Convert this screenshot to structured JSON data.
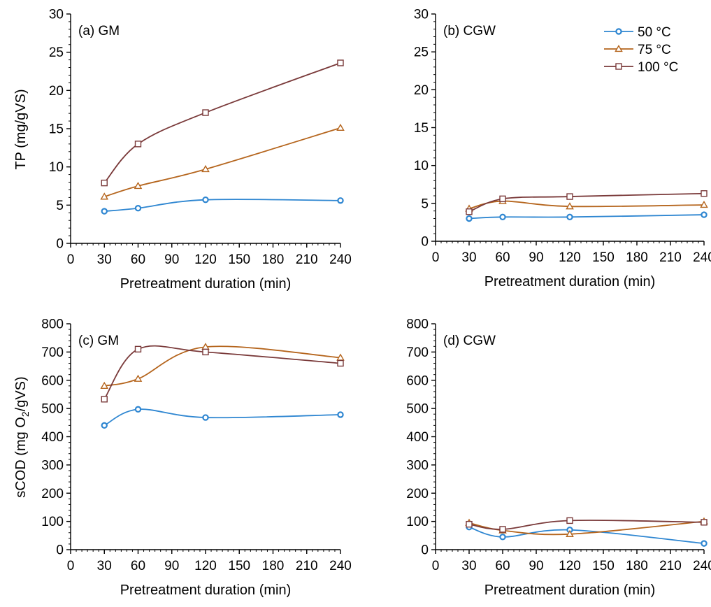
{
  "colors": {
    "50 °C": "#2E86D1",
    "75 °C": "#B5651D",
    "100 °C": "#7A3A3A"
  },
  "ylabel_top": "TP (mg/gVS)",
  "ylabel_bottom_prefix": "sCOD (mg O",
  "ylabel_bottom_sub": "2",
  "ylabel_bottom_suffix": "/gVS)",
  "chart_data": [
    {
      "type": "line",
      "panel_label": "(a) GM",
      "xlabel": "Pretreatment duration (min)",
      "ylabel": "TP (mg/gVS)",
      "xlim": [
        0,
        240
      ],
      "ylim": [
        0,
        30
      ],
      "xticks": [
        0,
        30,
        60,
        90,
        120,
        150,
        180,
        210,
        240
      ],
      "yticks": [
        0,
        5,
        10,
        15,
        20,
        25,
        30
      ],
      "x": [
        30,
        60,
        120,
        240
      ],
      "series": [
        {
          "name": "50 °C",
          "marker": "circle",
          "values": [
            4.2,
            4.6,
            5.7,
            5.6
          ]
        },
        {
          "name": "75 °C",
          "marker": "triangle",
          "values": [
            6.1,
            7.5,
            9.7,
            15.1
          ]
        },
        {
          "name": "100 °C",
          "marker": "square",
          "values": [
            7.9,
            13.0,
            17.1,
            23.6
          ]
        }
      ]
    },
    {
      "type": "line",
      "panel_label": "(b) CGW",
      "xlabel": "Pretreatment duration (min)",
      "ylabel": "",
      "xlim": [
        0,
        240
      ],
      "ylim": [
        0,
        30
      ],
      "xticks": [
        0,
        30,
        60,
        90,
        120,
        150,
        180,
        210,
        240
      ],
      "yticks": [
        0,
        5,
        10,
        15,
        20,
        25,
        30
      ],
      "x": [
        30,
        60,
        120,
        240
      ],
      "legend": "top-right",
      "series": [
        {
          "name": "50 °C",
          "marker": "circle",
          "values": [
            3.0,
            3.2,
            3.2,
            3.5
          ]
        },
        {
          "name": "75 °C",
          "marker": "triangle",
          "values": [
            4.3,
            5.3,
            4.6,
            4.8
          ]
        },
        {
          "name": "100 °C",
          "marker": "square",
          "values": [
            3.9,
            5.6,
            5.9,
            6.3
          ]
        }
      ]
    },
    {
      "type": "line",
      "panel_label": "(c) GM",
      "xlabel": "Pretreatment duration (min)",
      "ylabel": "sCOD (mg O2/gVS)",
      "xlim": [
        0,
        240
      ],
      "ylim": [
        0,
        800
      ],
      "xticks": [
        0,
        30,
        60,
        90,
        120,
        150,
        180,
        210,
        240
      ],
      "yticks": [
        0,
        100,
        200,
        300,
        400,
        500,
        600,
        700,
        800
      ],
      "x": [
        30,
        60,
        120,
        240
      ],
      "series": [
        {
          "name": "50 °C",
          "marker": "circle",
          "values": [
            440,
            497,
            468,
            478
          ]
        },
        {
          "name": "75 °C",
          "marker": "triangle",
          "values": [
            580,
            605,
            718,
            680
          ]
        },
        {
          "name": "100 °C",
          "marker": "square",
          "values": [
            533,
            710,
            700,
            660
          ]
        }
      ]
    },
    {
      "type": "line",
      "panel_label": "(d) CGW",
      "xlabel": "Pretreatment duration (min)",
      "ylabel": "",
      "xlim": [
        0,
        240
      ],
      "ylim": [
        0,
        800
      ],
      "xticks": [
        0,
        30,
        60,
        90,
        120,
        150,
        180,
        210,
        240
      ],
      "yticks": [
        0,
        100,
        200,
        300,
        400,
        500,
        600,
        700,
        800
      ],
      "x": [
        30,
        60,
        120,
        240
      ],
      "series": [
        {
          "name": "50 °C",
          "marker": "circle",
          "values": [
            80,
            45,
            70,
            22
          ]
        },
        {
          "name": "75 °C",
          "marker": "triangle",
          "values": [
            95,
            68,
            55,
            100
          ]
        },
        {
          "name": "100 °C",
          "marker": "square",
          "values": [
            90,
            72,
            103,
            97
          ]
        }
      ]
    }
  ]
}
